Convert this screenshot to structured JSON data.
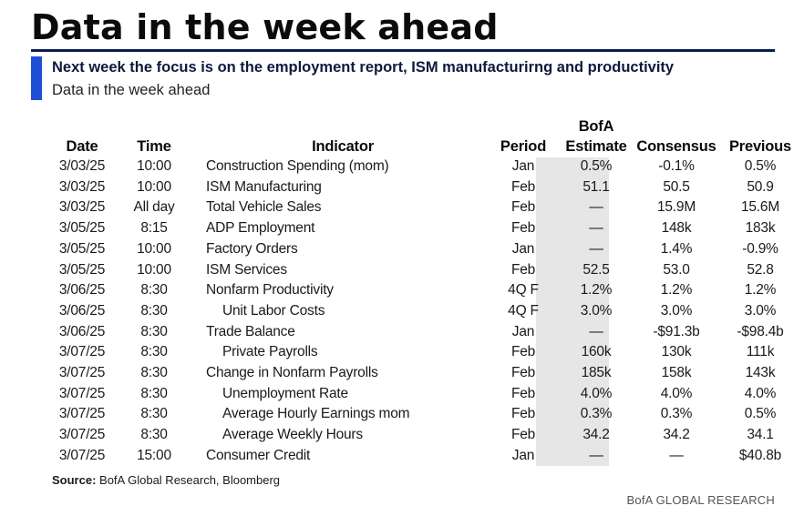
{
  "title": "Data in the week ahead",
  "subtitle": "Next week the focus is on the employment report, ISM manufacturirng and productivity",
  "subsubtitle": "Data in the week ahead",
  "table": {
    "headers": {
      "date": "Date",
      "time": "Time",
      "indicator": "Indicator",
      "period": "Period",
      "estimate_line1": "BofA",
      "estimate_line2": "Estimate",
      "consensus": "Consensus",
      "previous": "Previous"
    },
    "rows": [
      {
        "date": "3/03/25",
        "time": "10:00",
        "indicator": "Construction Spending (mom)",
        "indent": false,
        "period": "Jan",
        "estimate": "0.5%",
        "consensus": "-0.1%",
        "previous": "0.5%"
      },
      {
        "date": "3/03/25",
        "time": "10:00",
        "indicator": "ISM Manufacturing",
        "indent": false,
        "period": "Feb",
        "estimate": "51.1",
        "consensus": "50.5",
        "previous": "50.9"
      },
      {
        "date": "3/03/25",
        "time": "All day",
        "indicator": "Total Vehicle Sales",
        "indent": false,
        "period": "Feb",
        "estimate": "—",
        "consensus": "15.9M",
        "previous": "15.6M"
      },
      {
        "date": "3/05/25",
        "time": "8:15",
        "indicator": "ADP Employment",
        "indent": false,
        "period": "Feb",
        "estimate": "—",
        "consensus": "148k",
        "previous": "183k"
      },
      {
        "date": "3/05/25",
        "time": "10:00",
        "indicator": "Factory Orders",
        "indent": false,
        "period": "Jan",
        "estimate": "—",
        "consensus": "1.4%",
        "previous": "-0.9%"
      },
      {
        "date": "3/05/25",
        "time": "10:00",
        "indicator": "ISM Services",
        "indent": false,
        "period": "Feb",
        "estimate": "52.5",
        "consensus": "53.0",
        "previous": "52.8"
      },
      {
        "date": "3/06/25",
        "time": "8:30",
        "indicator": "Nonfarm Productivity",
        "indent": false,
        "period": "4Q F",
        "estimate": "1.2%",
        "consensus": "1.2%",
        "previous": "1.2%"
      },
      {
        "date": "3/06/25",
        "time": "8:30",
        "indicator": "Unit Labor Costs",
        "indent": true,
        "period": "4Q F",
        "estimate": "3.0%",
        "consensus": "3.0%",
        "previous": "3.0%"
      },
      {
        "date": "3/06/25",
        "time": "8:30",
        "indicator": "Trade Balance",
        "indent": false,
        "period": "Jan",
        "estimate": "—",
        "consensus": "-$91.3b",
        "previous": "-$98.4b"
      },
      {
        "date": "3/07/25",
        "time": "8:30",
        "indicator": "Private Payrolls",
        "indent": true,
        "period": "Feb",
        "estimate": "160k",
        "consensus": "130k",
        "previous": "111k"
      },
      {
        "date": "3/07/25",
        "time": "8:30",
        "indicator": "Change in Nonfarm Payrolls",
        "indent": false,
        "period": "Feb",
        "estimate": "185k",
        "consensus": "158k",
        "previous": "143k"
      },
      {
        "date": "3/07/25",
        "time": "8:30",
        "indicator": "Unemployment Rate",
        "indent": true,
        "period": "Feb",
        "estimate": "4.0%",
        "consensus": "4.0%",
        "previous": "4.0%"
      },
      {
        "date": "3/07/25",
        "time": "8:30",
        "indicator": "Average Hourly Earnings mom",
        "indent": true,
        "period": "Feb",
        "estimate": "0.3%",
        "consensus": "0.3%",
        "previous": "0.5%"
      },
      {
        "date": "3/07/25",
        "time": "8:30",
        "indicator": "Average Weekly Hours",
        "indent": true,
        "period": "Feb",
        "estimate": "34.2",
        "consensus": "34.2",
        "previous": "34.1"
      },
      {
        "date": "3/07/25",
        "time": "15:00",
        "indicator": "Consumer Credit",
        "indent": false,
        "period": "Jan",
        "estimate": "—",
        "consensus": "—",
        "previous": "$40.8b"
      }
    ]
  },
  "source": {
    "label": "Source:",
    "text": "BofA Global Research, Bloomberg"
  },
  "footer_brand": "BofA GLOBAL RESEARCH",
  "colors": {
    "accent_bar": "#1f4fd6",
    "title_rule": "#0a1d4d",
    "estimate_shade": "#e6e6e6"
  }
}
